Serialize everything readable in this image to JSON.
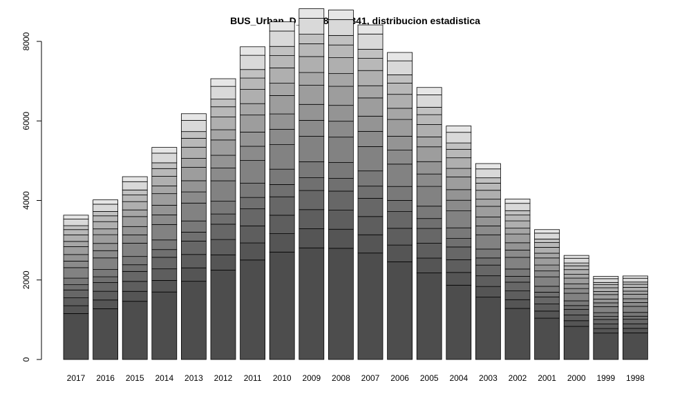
{
  "chart_data": {
    "type": "bar",
    "stacked": true,
    "title": "BUS_Urban_D_15_18: 102341, distribucion estadistica",
    "xlabel": "",
    "ylabel": "",
    "ylim": [
      0,
      8000
    ],
    "yticks": [
      0,
      2000,
      4000,
      6000,
      8000
    ],
    "grid": false,
    "categories": [
      "2017",
      "2016",
      "2015",
      "2014",
      "2013",
      "2012",
      "2011",
      "2010",
      "2009",
      "2008",
      "2007",
      "2006",
      "2005",
      "2004",
      "2003",
      "2002",
      "2001",
      "2000",
      "1999",
      "1998"
    ],
    "totals": [
      3300,
      3650,
      4180,
      4850,
      5620,
      6420,
      7150,
      7720,
      8020,
      7990,
      7650,
      7020,
      6220,
      5340,
      4480,
      3670,
      2970,
      2380,
      1900,
      1910
    ],
    "segment_fractions": [
      0.35,
      0.06,
      0.06,
      0.06,
      0.04,
      0.05,
      0.08,
      0.05,
      0.05,
      0.06,
      0.04,
      0.05,
      0.04,
      0.03,
      0.05,
      0.03
    ],
    "segment_colors": [
      "#4d4d4d",
      "#555555",
      "#5e5e5e",
      "#676767",
      "#707070",
      "#797979",
      "#828282",
      "#8b8b8b",
      "#949494",
      "#9d9d9d",
      "#a6a6a6",
      "#afafaf",
      "#b8b8b8",
      "#c1c1c1",
      "#d9d9d9",
      "#e6e6e6"
    ]
  }
}
